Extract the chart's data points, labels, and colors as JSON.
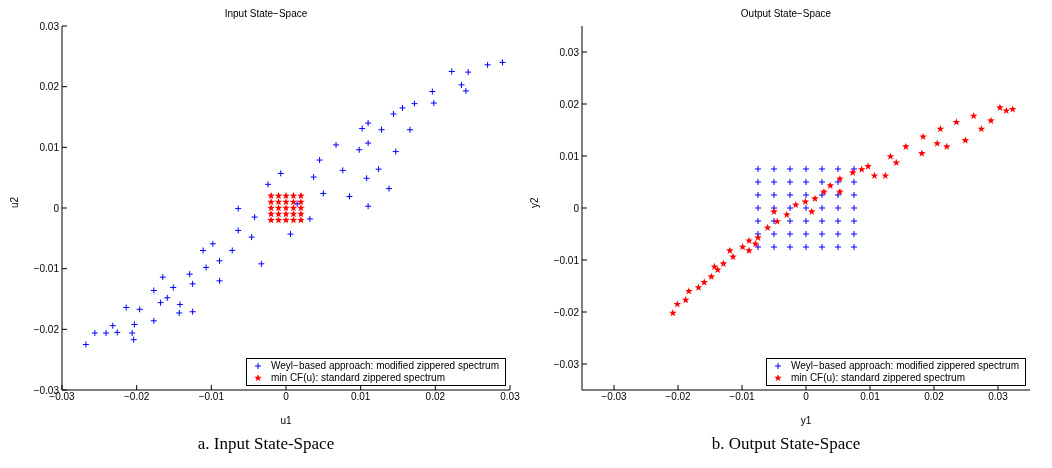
{
  "chart_data": [
    {
      "type": "scatter",
      "title": "Input State−Space",
      "xlabel": "u1",
      "ylabel": "u2",
      "xlim": [
        -0.03,
        0.03
      ],
      "ylim": [
        -0.03,
        0.03
      ],
      "xticks": [
        -0.03,
        -0.02,
        -0.01,
        0,
        0.01,
        0.02,
        0.03
      ],
      "yticks": [
        -0.03,
        -0.02,
        -0.01,
        0,
        0.01,
        0.02,
        0.03
      ],
      "grid": false,
      "legend": "bottom right",
      "annotations": [
        "a.   Input State-Space"
      ],
      "series": [
        {
          "name": "Weyl−based approach: modified zippered spectrum",
          "color": "#0000ff",
          "marker": "cross",
          "x": [
            0.029,
            0.027,
            0.0222,
            0.0244,
            0.0235,
            0.0241,
            0.0196,
            0.0198,
            0.0172,
            0.0156,
            0.0144,
            0.0166,
            0.0147,
            0.0128,
            0.011,
            0.0102,
            0.011,
            0.0098,
            0.0067,
            0.0076,
            0.0045,
            0.0037,
            0.005,
            0.0085,
            0.011,
            0.0138,
            0.0124,
            0.0108,
            0.0015,
            -0.0007,
            -0.0024,
            -0.0064,
            -0.0042,
            -0.0064,
            -0.0046,
            -0.0098,
            -0.0072,
            -0.0033,
            -0.0089,
            -0.0107,
            -0.0129,
            -0.0089,
            -0.0125,
            -0.0151,
            -0.0177,
            -0.0165,
            -0.0159,
            -0.0142,
            -0.0168,
            -0.0177,
            -0.0196,
            -0.0214,
            -0.0143,
            -0.0125,
            -0.0232,
            -0.0256,
            -0.0241,
            -0.0226,
            -0.0206,
            -0.0204,
            -0.0268,
            -0.0203,
            0.0032,
            0.0006,
            -0.0111
          ],
          "values": [
            0.024,
            0.0236,
            0.0225,
            0.0224,
            0.0203,
            0.0193,
            0.0192,
            0.0173,
            0.0172,
            0.0165,
            0.0155,
            0.0129,
            0.0093,
            0.0129,
            0.0107,
            0.0131,
            0.014,
            0.0096,
            0.0104,
            0.0062,
            0.0079,
            0.0051,
            0.0024,
            0.0019,
            0.0003,
            0.0032,
            0.0064,
            0.0049,
            0.0007,
            0.0057,
            0.0039,
            -0.0001,
            -0.0015,
            -0.0037,
            -0.0048,
            -0.0059,
            -0.007,
            -0.0092,
            -0.0087,
            -0.0098,
            -0.0109,
            -0.012,
            -0.0125,
            -0.0131,
            -0.0136,
            -0.0114,
            -0.0148,
            -0.0159,
            -0.0156,
            -0.0186,
            -0.0167,
            -0.0164,
            -0.0173,
            -0.0171,
            -0.0194,
            -0.0206,
            -0.0206,
            -0.0205,
            -0.0206,
            -0.0217,
            -0.0225,
            -0.0192,
            -0.0018,
            -0.0043,
            -0.007
          ]
        },
        {
          "name": "min CF(u): standard zippered spectrum",
          "color": "#ff0000",
          "marker": "star",
          "x": [
            -0.002,
            -0.001,
            0,
            0.001,
            0.002,
            -0.002,
            -0.001,
            0,
            0.001,
            0.002,
            -0.002,
            -0.001,
            0,
            0.001,
            0.002,
            -0.002,
            -0.001,
            0,
            0.001,
            0.002,
            -0.002,
            -0.001,
            0,
            0.001,
            0.002
          ],
          "values": [
            0.002,
            0.002,
            0.002,
            0.002,
            0.002,
            0.001,
            0.001,
            0.001,
            0.001,
            0.001,
            0,
            0,
            0,
            0,
            0,
            -0.001,
            -0.001,
            -0.001,
            -0.001,
            -0.001,
            -0.002,
            -0.002,
            -0.002,
            -0.002,
            -0.002
          ]
        }
      ]
    },
    {
      "type": "scatter",
      "title": "Output State−Space",
      "xlabel": "y1",
      "ylabel": "y2",
      "xlim": [
        -0.035,
        0.035
      ],
      "ylim": [
        -0.035,
        0.035
      ],
      "xticks": [
        -0.03,
        -0.02,
        -0.01,
        0,
        0.01,
        0.02,
        0.03
      ],
      "yticks": [
        -0.03,
        -0.02,
        -0.01,
        0,
        0.01,
        0.02,
        0.03
      ],
      "grid": false,
      "legend": "bottom right",
      "annotations": [
        "b.   Output State-Space"
      ],
      "series": [
        {
          "name": "Weyl−based approach: modified zippered spectrum",
          "color": "#0000ff",
          "marker": "cross",
          "x": [
            -0.0075,
            -0.005,
            -0.0025,
            0,
            0.0025,
            0.005,
            0.0075,
            -0.0075,
            -0.005,
            -0.0025,
            0,
            0.0025,
            0.005,
            0.0075,
            -0.0075,
            -0.005,
            -0.0025,
            0,
            0.0025,
            0.005,
            0.0075,
            -0.0075,
            -0.005,
            -0.0025,
            0,
            0.0025,
            0.005,
            0.0075,
            -0.0075,
            -0.005,
            -0.0025,
            0,
            0.0025,
            0.005,
            0.0075,
            -0.0075,
            -0.005,
            -0.0025,
            0,
            0.0025,
            0.005,
            0.0075,
            -0.0075,
            -0.005,
            -0.0025,
            0,
            0.0025,
            0.005,
            0.0075
          ],
          "values": [
            0.0075,
            0.0075,
            0.0075,
            0.0075,
            0.0075,
            0.0075,
            0.0075,
            0.005,
            0.005,
            0.005,
            0.005,
            0.005,
            0.005,
            0.005,
            0.0025,
            0.0025,
            0.0025,
            0.0025,
            0.0025,
            0.0025,
            0.0025,
            0,
            0,
            0,
            0,
            0,
            0,
            0,
            -0.0025,
            -0.0025,
            -0.0025,
            -0.0025,
            -0.0025,
            -0.0025,
            -0.0025,
            -0.005,
            -0.005,
            -0.005,
            -0.005,
            -0.005,
            -0.005,
            -0.005,
            -0.0075,
            -0.0075,
            -0.0075,
            -0.0075,
            -0.0075,
            -0.0075,
            -0.0075
          ]
        },
        {
          "name": "min CF(u): standard zippered spectrum",
          "color": "#ff0000",
          "marker": "star",
          "x": [
            -0.0208,
            -0.0201,
            -0.0188,
            -0.0183,
            -0.0168,
            -0.0159,
            -0.0148,
            -0.0138,
            -0.0129,
            -0.0143,
            -0.0114,
            -0.0099,
            -0.0089,
            -0.0075,
            -0.006,
            -0.0045,
            -0.003,
            -0.0016,
            -0.0001,
            0.0014,
            0.0028,
            0.0038,
            0.0053,
            0.0073,
            0.0087,
            0.0097,
            0.0107,
            0.0124,
            0.0132,
            0.0156,
            0.0181,
            0.0205,
            0.022,
            0.0235,
            0.0249,
            0.0262,
            0.0274,
            0.0289,
            0.0303,
            0.0313,
            0.0323,
            0.021,
            0.0183,
            0.0141,
            -0.0089,
            -0.0079,
            -0.0119,
            -0.005,
            0.0009,
            0.0053
          ],
          "values": [
            -0.0202,
            -0.0185,
            -0.0177,
            -0.016,
            -0.0153,
            -0.0143,
            -0.0132,
            -0.0119,
            -0.0107,
            -0.0113,
            -0.0094,
            -0.0075,
            -0.0063,
            -0.0057,
            -0.0038,
            -0.0026,
            -0.0013,
            0.0006,
            0.0012,
            0.0018,
            0.0031,
            0.0043,
            0.0056,
            0.0068,
            0.0074,
            0.008,
            0.0062,
            0.0062,
            0.0099,
            0.0118,
            0.0105,
            0.0124,
            0.0118,
            0.0165,
            0.013,
            0.0177,
            0.0152,
            0.0168,
            0.0193,
            0.0187,
            0.019,
            0.0152,
            0.0137,
            0.0087,
            -0.0082,
            -0.0069,
            -0.0082,
            -0.0007,
            -0.0007,
            0.0031
          ]
        }
      ]
    }
  ]
}
